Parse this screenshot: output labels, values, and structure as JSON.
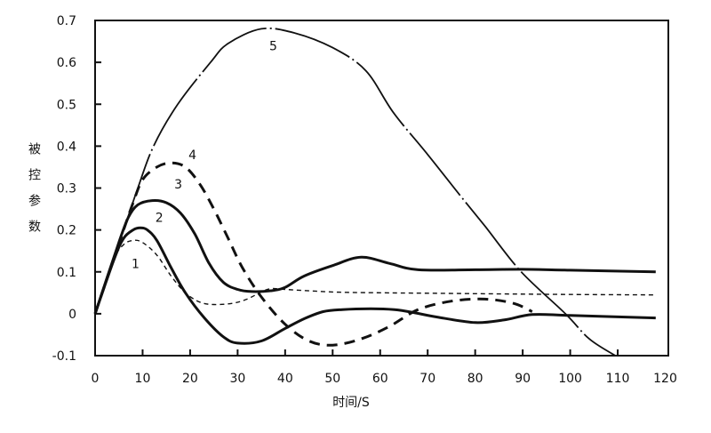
{
  "chart_data": {
    "type": "line",
    "title": "",
    "xlabel": "时间/S",
    "ylabel": "被控参数",
    "xlim": [
      0,
      120
    ],
    "ylim": [
      -0.1,
      0.7
    ],
    "xticks": [
      "0",
      "10",
      "20",
      "30",
      "40",
      "50",
      "60",
      "70",
      "80",
      "90",
      "100",
      "110",
      "120"
    ],
    "yticks": [
      "-0.1",
      "0",
      "0.1",
      "0.2",
      "0.3",
      "0.4",
      "0.5",
      "0.6",
      "0.7"
    ],
    "grid": false,
    "legend": "none",
    "series": [
      {
        "name": "1",
        "style": "thin-dashed",
        "x": [
          0,
          4,
          6,
          8,
          10,
          13,
          16,
          19,
          22,
          25,
          29,
          32,
          35,
          37,
          40,
          50,
          60,
          80,
          100,
          118
        ],
        "y": [
          0,
          0.13,
          0.165,
          0.175,
          0.17,
          0.14,
          0.09,
          0.05,
          0.028,
          0.022,
          0.025,
          0.035,
          0.052,
          0.06,
          0.058,
          0.052,
          0.05,
          0.048,
          0.046,
          0.045
        ]
      },
      {
        "name": "2",
        "style": "solid",
        "x": [
          0,
          4,
          6,
          8,
          9.5,
          11,
          13,
          16,
          19,
          23,
          27,
          30,
          35,
          40,
          44,
          48,
          52,
          58,
          63,
          67,
          72,
          80,
          86,
          92,
          100,
          118
        ],
        "y": [
          0,
          0.13,
          0.18,
          0.2,
          0.205,
          0.2,
          0.175,
          0.11,
          0.05,
          -0.01,
          -0.055,
          -0.07,
          -0.065,
          -0.035,
          -0.012,
          0.005,
          0.01,
          0.012,
          0.01,
          0.003,
          -0.008,
          -0.021,
          -0.015,
          -0.002,
          -0.004,
          -0.01
        ]
      },
      {
        "name": "3",
        "style": "solid",
        "x": [
          0,
          5,
          7,
          9,
          12,
          15,
          18,
          21,
          24,
          27,
          30,
          33,
          37,
          40,
          44,
          50,
          56,
          62,
          68,
          80,
          90,
          100,
          118
        ],
        "y": [
          0,
          0.17,
          0.23,
          0.26,
          0.27,
          0.265,
          0.24,
          0.19,
          0.12,
          0.075,
          0.058,
          0.053,
          0.055,
          0.063,
          0.09,
          0.115,
          0.135,
          0.12,
          0.105,
          0.105,
          0.106,
          0.104,
          0.1
        ]
      },
      {
        "name": "4",
        "style": "thick-dashed",
        "x": [
          0,
          6,
          8,
          10,
          13,
          16,
          19,
          22,
          25,
          28,
          31,
          35,
          40,
          45,
          50,
          56,
          62,
          68,
          75,
          82,
          88,
          92
        ],
        "y": [
          0,
          0.2,
          0.265,
          0.32,
          0.35,
          0.36,
          0.35,
          0.31,
          0.25,
          0.18,
          0.11,
          0.04,
          -0.025,
          -0.065,
          -0.075,
          -0.06,
          -0.03,
          0.01,
          0.03,
          0.035,
          0.025,
          0.005
        ]
      },
      {
        "name": "5",
        "style": "dash-dot",
        "x": [
          0,
          6,
          9,
          12.3,
          17.4,
          24.3,
          28,
          35,
          42,
          50,
          57,
          62.8,
          70,
          77,
          82,
          89.7,
          99,
          104,
          109.5
        ],
        "y": [
          0,
          0.2,
          0.3,
          0.4,
          0.5,
          0.6,
          0.645,
          0.68,
          0.67,
          0.635,
          0.58,
          0.48,
          0.38,
          0.28,
          0.21,
          0.1,
          0,
          -0.06,
          -0.1
        ]
      }
    ],
    "annotations": [
      {
        "text": "1",
        "x": 8.5,
        "y": 0.12
      },
      {
        "text": "2",
        "x": 13.5,
        "y": 0.23
      },
      {
        "text": "3",
        "x": 17.5,
        "y": 0.31
      },
      {
        "text": "4",
        "x": 20.5,
        "y": 0.38
      },
      {
        "text": "5",
        "x": 37.5,
        "y": 0.64
      }
    ]
  }
}
